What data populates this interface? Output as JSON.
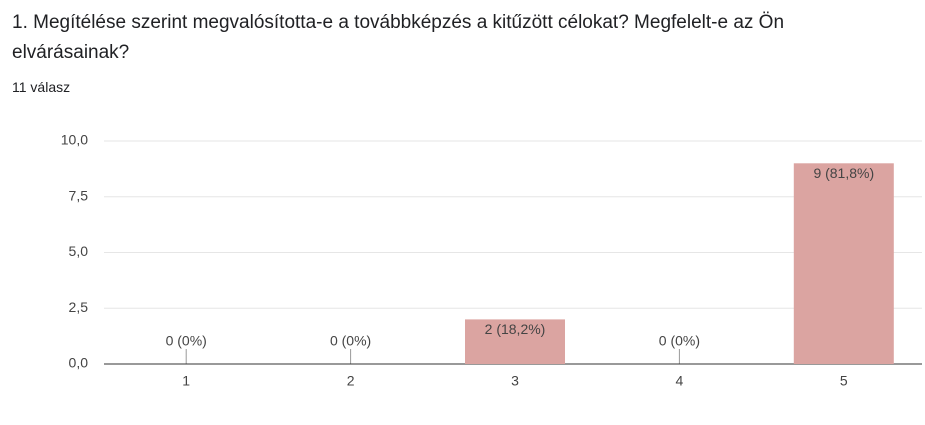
{
  "chart_data": {
    "type": "bar",
    "title": "1. Megítélése szerint megvalósította-e a továbbképzés a kitűzött célokat? Megfelelt-e az Ön elvárásainak?",
    "subtitle": "11 válasz",
    "categories": [
      "1",
      "2",
      "3",
      "4",
      "5"
    ],
    "values": [
      0,
      0,
      2,
      0,
      9
    ],
    "value_labels": [
      "0 (0%)",
      "0 (0%)",
      "2 (18,2%)",
      "0 (0%)",
      "9 (81,8%)"
    ],
    "color": "#dba4a1",
    "ylim": [
      0,
      10
    ],
    "yticks": [
      {
        "value": 0,
        "label": "0,0"
      },
      {
        "value": 2.5,
        "label": "2,5"
      },
      {
        "value": 5,
        "label": "5,0"
      },
      {
        "value": 7.5,
        "label": "7,5"
      },
      {
        "value": 10,
        "label": "10,0"
      }
    ],
    "grid": true
  }
}
